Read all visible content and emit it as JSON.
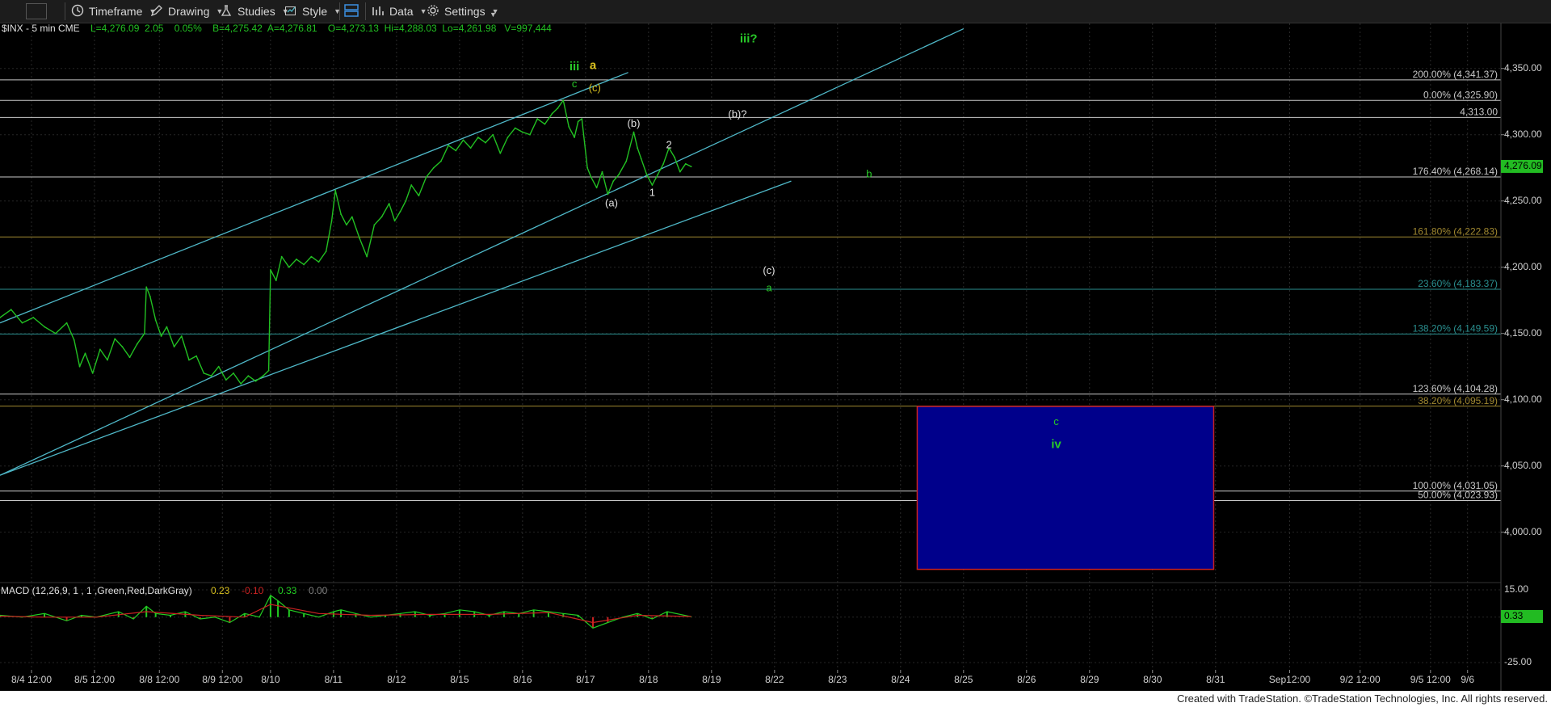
{
  "toolbar": {
    "timeframe_label": "Timeframe",
    "drawing_label": "Drawing",
    "studies_label": "Studies",
    "style_label": "Style",
    "data_label": "Data",
    "settings_label": "Settings"
  },
  "header": {
    "symbol": "$INX - 5 min  CME",
    "quote": "L=4,276.09  2.05    0.05%    B=4,275.42  A=4,276.81    O=4,273.13  Hi=4,288.03  Lo=4,261.98   V=997,444"
  },
  "colors": {
    "background": "#000000",
    "price_line": "#22c022",
    "channel": "#4fb8c8",
    "fib_white": "#c8c8c8",
    "fib_gold": "#a08830",
    "fib_teal": "#2a8f8f",
    "target_box": "#00008b",
    "target_border": "#cc2222",
    "wave_green": "#28c828",
    "wave_yellow": "#d8c020",
    "wave_white": "#e0e0e0",
    "macd_line": "#22cc22",
    "macd_signal": "#cc2222",
    "last_price_bg": "#22bb22"
  },
  "fib_levels": [
    {
      "label": "200.00% (4,341.37)",
      "value": 4341.37,
      "color": "fib_white"
    },
    {
      "label": "0.00% (4,325.90)",
      "value": 4325.9,
      "color": "fib_white"
    },
    {
      "label": "4,313.00",
      "value": 4313.0,
      "color": "fib_white"
    },
    {
      "label": "176.40% (4,268.14)",
      "value": 4268.14,
      "color": "fib_white"
    },
    {
      "label": "161.80% (4,222.83)",
      "value": 4222.83,
      "color": "fib_gold"
    },
    {
      "label": "23.60% (4,183.37)",
      "value": 4183.37,
      "color": "fib_teal"
    },
    {
      "label": "138.20% (4,149.59)",
      "value": 4149.59,
      "color": "fib_teal"
    },
    {
      "label": "123.60% (4,104.28)",
      "value": 4104.28,
      "color": "fib_white"
    },
    {
      "label": "38.20% (4,095.19)",
      "value": 4095.19,
      "color": "fib_gold"
    },
    {
      "label": "100.00% (4,031.05)",
      "value": 4031.05,
      "color": "fib_white"
    },
    {
      "label": "50.00% (4,023.93)",
      "value": 4023.93,
      "color": "fib_white"
    }
  ],
  "wave_labels": [
    {
      "text": "iii",
      "x": 15.5,
      "y": 4351,
      "color": "wave_green",
      "bold": true
    },
    {
      "text": "a",
      "x": 16.0,
      "y": 4352,
      "color": "wave_yellow",
      "bold": true
    },
    {
      "text": "c",
      "x": 15.5,
      "y": 4338,
      "color": "wave_green"
    },
    {
      "text": "(c)",
      "x": 16.05,
      "y": 4335,
      "color": "wave_yellow"
    },
    {
      "text": "iii?",
      "x": 20.2,
      "y": 4372,
      "color": "wave_green",
      "bold": true
    },
    {
      "text": "(b)?",
      "x": 19.9,
      "y": 4315,
      "color": "wave_white"
    },
    {
      "text": "(b)",
      "x": 17.1,
      "y": 4308,
      "color": "wave_white"
    },
    {
      "text": "2",
      "x": 18.05,
      "y": 4292,
      "color": "wave_white"
    },
    {
      "text": "1",
      "x": 17.6,
      "y": 4256,
      "color": "wave_white"
    },
    {
      "text": "(a)",
      "x": 16.5,
      "y": 4248,
      "color": "wave_white"
    },
    {
      "text": "b",
      "x": 23.45,
      "y": 4270,
      "color": "wave_green"
    },
    {
      "text": "(c)",
      "x": 20.75,
      "y": 4197,
      "color": "wave_white"
    },
    {
      "text": "a",
      "x": 20.75,
      "y": 4184,
      "color": "wave_green"
    },
    {
      "text": "c",
      "x": 28.5,
      "y": 4083,
      "color": "wave_green"
    },
    {
      "text": "iv",
      "x": 28.5,
      "y": 4066,
      "color": "wave_green",
      "bold": true
    }
  ],
  "channels": [
    {
      "x1": 0,
      "y1": 4158,
      "x2": 16.95,
      "y2": 4347
    },
    {
      "x1": 0,
      "y1": 4043,
      "x2": 26.0,
      "y2": 4380
    },
    {
      "x1": 0,
      "y1": 4043,
      "x2": 21.35,
      "y2": 4265
    }
  ],
  "target_box": {
    "x1": 24.75,
    "x2": 32.75,
    "ymin": 3972,
    "ymax": 4095
  },
  "last_price": {
    "label": "4,276.09",
    "value": 4276.09
  },
  "chart_data": [
    {
      "type": "line",
      "title": "$INX - 5 min",
      "xlabel": "",
      "ylabel": "",
      "xlim": [
        0,
        40.5
      ],
      "ylim": [
        3962,
        4384
      ],
      "y_ticks": [
        "4,350.00",
        "4,300.00",
        "4,250.00",
        "4,200.00",
        "4,150.00",
        "4,100.00",
        "4,050.00",
        "4,000.00"
      ],
      "y_tick_values": [
        4350,
        4300,
        4250,
        4200,
        4150,
        4100,
        4050,
        4000
      ],
      "x_ticks": [
        "8/4 12:00",
        "8/5 12:00",
        "8/8 12:00",
        "8/9 12:00",
        "8/10",
        "8/11",
        "8/12",
        "8/15",
        "8/16",
        "8/17",
        "8/18",
        "8/19",
        "8/22",
        "8/23",
        "8/24",
        "8/25",
        "8/26",
        "8/29",
        "8/30",
        "8/31",
        "Sep12:00",
        "9/2 12:00",
        "9/5 12:00",
        "9/6"
      ],
      "x_tick_values": [
        0.85,
        2.55,
        4.3,
        6.0,
        7.3,
        9.0,
        10.7,
        12.4,
        14.1,
        15.8,
        17.5,
        19.2,
        20.9,
        22.6,
        24.3,
        26.0,
        27.7,
        29.4,
        31.1,
        32.8,
        34.8,
        36.7,
        38.6,
        39.6
      ],
      "grid": true,
      "series": [
        {
          "name": "$INX",
          "x": [
            0,
            0.3,
            0.6,
            0.9,
            1.2,
            1.5,
            1.8,
            2.0,
            2.15,
            2.3,
            2.5,
            2.7,
            2.9,
            3.1,
            3.3,
            3.5,
            3.7,
            3.9,
            3.95,
            4.05,
            4.2,
            4.35,
            4.5,
            4.7,
            4.9,
            5.1,
            5.3,
            5.5,
            5.7,
            5.9,
            6.1,
            6.3,
            6.5,
            6.7,
            6.9,
            7.1,
            7.25,
            7.3,
            7.45,
            7.6,
            7.8,
            8.0,
            8.2,
            8.4,
            8.6,
            8.8,
            8.95,
            9.05,
            9.2,
            9.35,
            9.5,
            9.7,
            9.9,
            10.1,
            10.3,
            10.5,
            10.65,
            10.8,
            10.95,
            11.1,
            11.3,
            11.5,
            11.7,
            11.9,
            12.1,
            12.3,
            12.5,
            12.7,
            12.9,
            13.1,
            13.3,
            13.5,
            13.7,
            13.9,
            14.1,
            14.3,
            14.5,
            14.7,
            14.9,
            15.05,
            15.2,
            15.35,
            15.5,
            15.6,
            15.7,
            15.85,
            15.95,
            16.1,
            16.25,
            16.4,
            16.55,
            16.7,
            16.9,
            17.1,
            17.2,
            17.3,
            17.45,
            17.6,
            17.75,
            17.9,
            18.05,
            18.2,
            18.35,
            18.5,
            18.65
          ],
          "values": [
            4162,
            4168,
            4158,
            4162,
            4155,
            4150,
            4158,
            4145,
            4125,
            4135,
            4120,
            4138,
            4130,
            4146,
            4140,
            4132,
            4142,
            4150,
            4185,
            4178,
            4160,
            4148,
            4155,
            4140,
            4148,
            4130,
            4133,
            4120,
            4118,
            4125,
            4115,
            4120,
            4112,
            4118,
            4114,
            4118,
            4122,
            4198,
            4190,
            4208,
            4200,
            4206,
            4202,
            4208,
            4204,
            4212,
            4235,
            4258,
            4240,
            4232,
            4238,
            4222,
            4208,
            4232,
            4238,
            4248,
            4235,
            4242,
            4250,
            4262,
            4254,
            4268,
            4275,
            4280,
            4292,
            4288,
            4296,
            4290,
            4298,
            4294,
            4300,
            4286,
            4298,
            4305,
            4302,
            4300,
            4312,
            4308,
            4316,
            4320,
            4326,
            4306,
            4298,
            4310,
            4312,
            4275,
            4268,
            4260,
            4272,
            4255,
            4265,
            4270,
            4280,
            4302,
            4290,
            4282,
            4270,
            4262,
            4270,
            4278,
            4290,
            4283,
            4272,
            4278,
            4276
          ]
        }
      ]
    },
    {
      "type": "line",
      "title": "MACD (12,26,9, 1 , 1 ,Green,Red,DarkGray)",
      "xlabel": "",
      "ylabel": "",
      "ylim": [
        -29,
        19
      ],
      "y_ticks": [
        "15.00",
        "0.33",
        "-25.00"
      ],
      "y_tick_values": [
        15,
        0.33,
        -25
      ],
      "readout": [
        "0.23",
        "-0.10",
        "0.33",
        "0.00"
      ],
      "series": [
        {
          "name": "MACD",
          "x": [
            0,
            0.6,
            1.2,
            1.8,
            2.2,
            2.6,
            3.2,
            3.6,
            3.95,
            4.2,
            4.6,
            5.0,
            5.4,
            5.8,
            6.2,
            6.6,
            7.0,
            7.3,
            7.5,
            7.8,
            8.2,
            8.6,
            9.0,
            9.2,
            9.6,
            10.0,
            10.4,
            10.8,
            11.2,
            11.6,
            12.0,
            12.4,
            12.8,
            13.2,
            13.6,
            14.0,
            14.4,
            14.8,
            15.2,
            15.6,
            16.0,
            16.4,
            16.8,
            17.2,
            17.6,
            18.0,
            18.65
          ],
          "values": [
            1,
            0,
            2,
            -2,
            1,
            0,
            3,
            -1,
            6,
            2,
            1,
            3,
            -1,
            0,
            -3,
            2,
            0,
            12,
            9,
            4,
            2,
            0,
            3,
            4,
            2,
            0,
            1,
            2,
            3,
            1,
            2,
            4,
            3,
            1,
            3,
            2,
            4,
            3,
            2,
            1,
            -6,
            -3,
            0,
            2,
            -1,
            3,
            0.23
          ]
        },
        {
          "name": "Signal",
          "x": [
            0,
            1.2,
            2.6,
            3.95,
            5.4,
            6.6,
            7.3,
            8.6,
            10.0,
            11.6,
            13.2,
            14.8,
            16.0,
            17.2,
            18.65
          ],
          "values": [
            0.5,
            0,
            0,
            3,
            1,
            0,
            7,
            2,
            1,
            1.5,
            1.5,
            2.5,
            -3,
            1,
            0.33
          ]
        }
      ]
    }
  ],
  "footer": {
    "credit": "Created with TradeStation. ©TradeStation Technologies, Inc. All rights reserved."
  }
}
